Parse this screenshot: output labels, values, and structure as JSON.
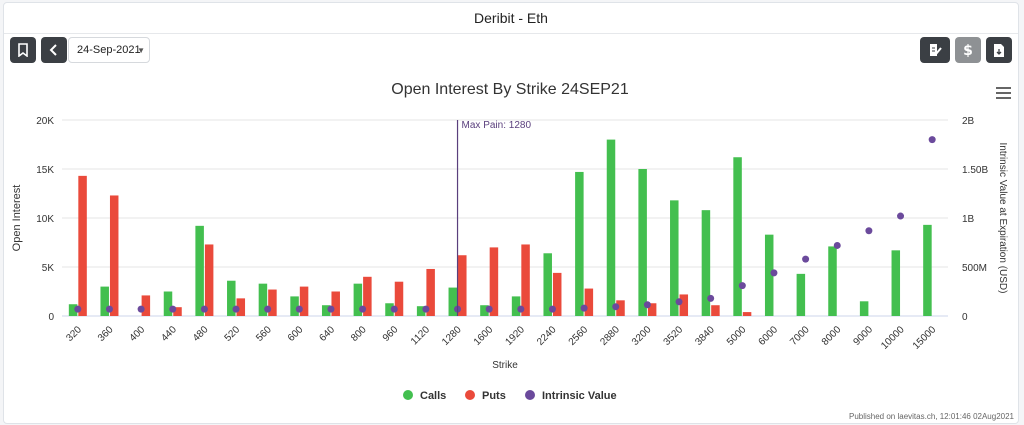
{
  "header": {
    "title": "Deribit - Eth"
  },
  "toolbar": {
    "date_value": "24-Sep-2021"
  },
  "footer": {
    "published": "Published on laevitas.ch, 12:01:46 02Aug2021"
  },
  "chart_data": {
    "type": "bar",
    "title": "Open Interest By Strike 24SEP21",
    "xlabel": "Strike",
    "ylabel": "Open Interest",
    "y2label": "Intrinsic Value at Expiration (USD)",
    "categories": [
      "320",
      "360",
      "400",
      "440",
      "480",
      "520",
      "560",
      "600",
      "640",
      "800",
      "960",
      "1120",
      "1280",
      "1600",
      "1920",
      "2240",
      "2560",
      "2880",
      "3200",
      "3520",
      "3840",
      "5000",
      "6000",
      "7000",
      "8000",
      "9000",
      "10000",
      "15000"
    ],
    "y_ticks": [
      "0",
      "5K",
      "10K",
      "15K",
      "20K"
    ],
    "y2_ticks": [
      "0",
      "500M",
      "1B",
      "1.50B",
      "2B"
    ],
    "ylim": [
      0,
      20000
    ],
    "y2lim": [
      0,
      2000000000
    ],
    "series": [
      {
        "name": "Calls",
        "color": "#43bf4f",
        "values": [
          1200,
          3000,
          0,
          2500,
          9200,
          3600,
          3300,
          2000,
          1100,
          3300,
          1300,
          1000,
          2900,
          1100,
          2000,
          6400,
          14700,
          18000,
          15000,
          11800,
          10800,
          16200,
          8300,
          4300,
          7100,
          1500,
          6700,
          9300
        ]
      },
      {
        "name": "Puts",
        "color": "#ea4a3b",
        "values": [
          14300,
          12300,
          2100,
          900,
          7300,
          1800,
          2700,
          3000,
          2500,
          4000,
          3500,
          4800,
          6200,
          7000,
          7300,
          4400,
          2800,
          1600,
          1300,
          2200,
          1100,
          400,
          0,
          0,
          0,
          0,
          0,
          0
        ]
      }
    ],
    "intrinsic": {
      "name": "Intrinsic Value",
      "color": "#6b4a9c",
      "values": [
        70000000,
        70000000,
        70000000,
        70000000,
        70000000,
        70000000,
        70000000,
        70000000,
        70000000,
        70000000,
        70000000,
        70000000,
        70000000,
        70000000,
        70000000,
        70000000,
        80000000,
        95000000,
        115000000,
        145000000,
        180000000,
        310000000,
        440000000,
        580000000,
        720000000,
        870000000,
        1020000000,
        1800000000
      ]
    },
    "max_pain": {
      "label": "Max Pain: 1280",
      "strike": "1280"
    },
    "legend": {
      "position": "bottom",
      "items": [
        "Calls",
        "Puts",
        "Intrinsic Value"
      ]
    }
  }
}
